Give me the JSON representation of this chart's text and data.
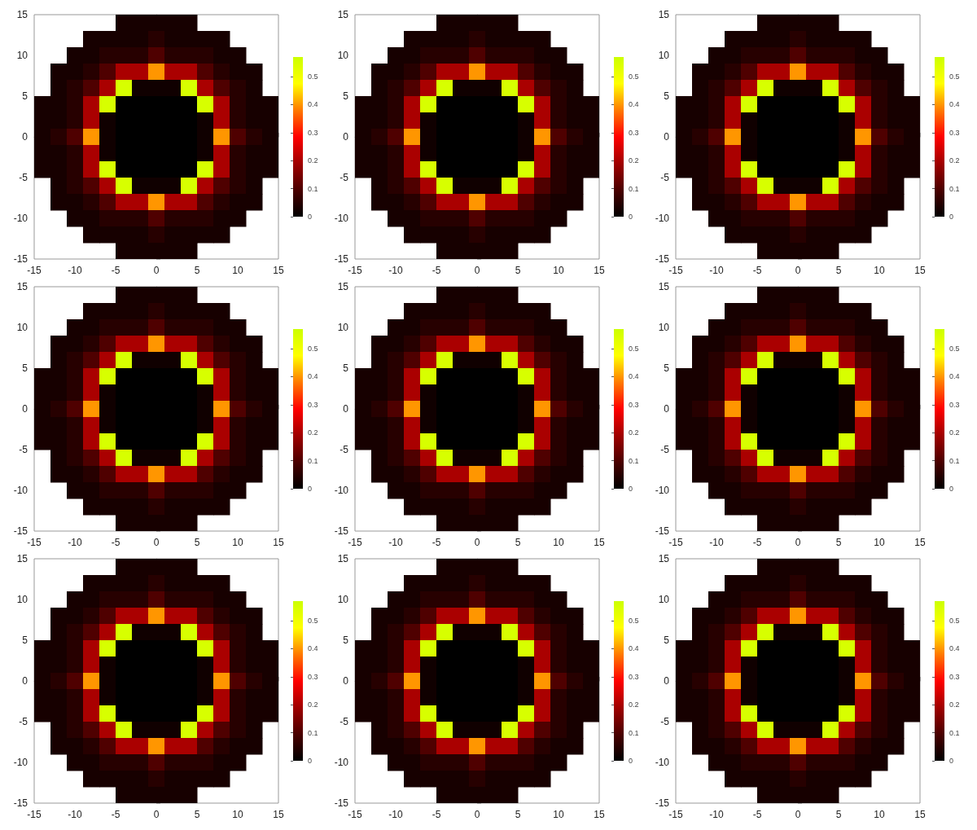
{
  "chart_data": [
    {
      "type": "heatmap",
      "xlim": [
        -15,
        15
      ],
      "ylim": [
        -15,
        15
      ],
      "xticks": [
        -15,
        -10,
        -5,
        0,
        5,
        10,
        15
      ],
      "yticks": [
        -15,
        -10,
        -5,
        0,
        5,
        10,
        15
      ],
      "clim": [
        0,
        0.57
      ],
      "cticks": [
        0,
        0.1,
        0.2,
        0.3,
        0.4,
        0.5
      ],
      "cells": [
        [
          null,
          null,
          null,
          null,
          null,
          0.03,
          0.03,
          0.03,
          0.03,
          0.03,
          null,
          null,
          null,
          null,
          null
        ],
        [
          null,
          null,
          null,
          0.03,
          0.03,
          0.03,
          0.03,
          0.05,
          0.03,
          0.03,
          0.03,
          0.03,
          null,
          null,
          null
        ],
        [
          null,
          null,
          0.03,
          0.03,
          0.05,
          0.05,
          0.05,
          0.1,
          0.05,
          0.05,
          0.05,
          0.03,
          0.03,
          null,
          null
        ],
        [
          null,
          0.03,
          0.03,
          0.05,
          0.1,
          0.2,
          0.2,
          0.4,
          0.2,
          0.2,
          0.1,
          0.05,
          0.03,
          0.03,
          null
        ],
        [
          null,
          0.03,
          0.05,
          0.1,
          0.2,
          0.55,
          0.02,
          0.02,
          0.02,
          0.55,
          0.2,
          0.1,
          0.05,
          0.03,
          null
        ],
        [
          0.03,
          0.03,
          0.05,
          0.2,
          0.55,
          0,
          0,
          0,
          0,
          0,
          0.55,
          0.2,
          0.05,
          0.03,
          0.03
        ],
        [
          0.03,
          0.03,
          0.05,
          0.2,
          0.02,
          0,
          0,
          0,
          0,
          0,
          0.02,
          0.2,
          0.05,
          0.03,
          0.03
        ],
        [
          0.03,
          0.05,
          0.1,
          0.4,
          0.02,
          0,
          0,
          0,
          0,
          0,
          0.02,
          0.4,
          0.1,
          0.05,
          0.03
        ],
        [
          0.03,
          0.03,
          0.05,
          0.2,
          0.02,
          0,
          0,
          0,
          0,
          0,
          0.02,
          0.2,
          0.05,
          0.03,
          0.03
        ],
        [
          0.03,
          0.03,
          0.05,
          0.2,
          0.55,
          0,
          0,
          0,
          0,
          0,
          0.55,
          0.2,
          0.05,
          0.03,
          0.03
        ],
        [
          null,
          0.03,
          0.05,
          0.1,
          0.2,
          0.55,
          0.02,
          0.02,
          0.02,
          0.55,
          0.2,
          0.1,
          0.05,
          0.03,
          null
        ],
        [
          null,
          0.03,
          0.03,
          0.05,
          0.1,
          0.2,
          0.2,
          0.4,
          0.2,
          0.2,
          0.1,
          0.05,
          0.03,
          0.03,
          null
        ],
        [
          null,
          null,
          0.03,
          0.03,
          0.05,
          0.05,
          0.05,
          0.1,
          0.05,
          0.05,
          0.05,
          0.03,
          0.03,
          null,
          null
        ],
        [
          null,
          null,
          null,
          0.03,
          0.03,
          0.03,
          0.03,
          0.05,
          0.03,
          0.03,
          0.03,
          0.03,
          null,
          null,
          null
        ],
        [
          null,
          null,
          null,
          null,
          null,
          0.03,
          0.03,
          0.03,
          0.03,
          0.03,
          null,
          null,
          null,
          null,
          null
        ]
      ]
    },
    {
      "type": "heatmap",
      "xlim": [
        -15,
        15
      ],
      "ylim": [
        -15,
        15
      ],
      "xticks": [
        -15,
        -10,
        -5,
        0,
        5,
        10,
        15
      ],
      "yticks": [
        -15,
        -10,
        -5,
        0,
        5,
        10,
        15
      ],
      "clim": [
        0,
        0.57
      ],
      "cticks": [
        0,
        0.1,
        0.2,
        0.3,
        0.4,
        0.5
      ],
      "cells": [
        [
          null,
          null,
          null,
          null,
          null,
          0.03,
          0.03,
          0.03,
          0.03,
          0.03,
          null,
          null,
          null,
          null,
          null
        ],
        [
          null,
          null,
          null,
          0.03,
          0.03,
          0.03,
          0.03,
          0.05,
          0.03,
          0.03,
          0.03,
          0.03,
          null,
          null,
          null
        ],
        [
          null,
          null,
          0.03,
          0.03,
          0.05,
          0.05,
          0.05,
          0.1,
          0.05,
          0.05,
          0.05,
          0.03,
          0.03,
          null,
          null
        ],
        [
          null,
          0.03,
          0.03,
          0.05,
          0.1,
          0.2,
          0.2,
          0.4,
          0.2,
          0.2,
          0.1,
          0.05,
          0.03,
          0.03,
          null
        ],
        [
          null,
          0.03,
          0.05,
          0.1,
          0.2,
          0.55,
          0.02,
          0.02,
          0.02,
          0.55,
          0.2,
          0.1,
          0.05,
          0.03,
          null
        ],
        [
          0.03,
          0.03,
          0.05,
          0.2,
          0.55,
          0,
          0,
          0,
          0,
          0,
          0.55,
          0.2,
          0.05,
          0.03,
          0.03
        ],
        [
          0.03,
          0.03,
          0.05,
          0.2,
          0.02,
          0,
          0,
          0,
          0,
          0,
          0.02,
          0.2,
          0.05,
          0.03,
          0.03
        ],
        [
          0.03,
          0.05,
          0.1,
          0.4,
          0.02,
          0,
          0,
          0,
          0,
          0,
          0.02,
          0.4,
          0.1,
          0.05,
          0.03
        ],
        [
          0.03,
          0.03,
          0.05,
          0.2,
          0.02,
          0,
          0,
          0,
          0,
          0,
          0.02,
          0.2,
          0.05,
          0.03,
          0.03
        ],
        [
          0.03,
          0.03,
          0.05,
          0.2,
          0.55,
          0,
          0,
          0,
          0,
          0,
          0.55,
          0.2,
          0.05,
          0.03,
          0.03
        ],
        [
          null,
          0.03,
          0.05,
          0.1,
          0.2,
          0.55,
          0.02,
          0.02,
          0.02,
          0.55,
          0.2,
          0.1,
          0.05,
          0.03,
          null
        ],
        [
          null,
          0.03,
          0.03,
          0.05,
          0.1,
          0.2,
          0.2,
          0.4,
          0.2,
          0.2,
          0.1,
          0.05,
          0.03,
          0.03,
          null
        ],
        [
          null,
          null,
          0.03,
          0.03,
          0.05,
          0.05,
          0.05,
          0.1,
          0.05,
          0.05,
          0.05,
          0.03,
          0.03,
          null,
          null
        ],
        [
          null,
          null,
          null,
          0.03,
          0.03,
          0.03,
          0.03,
          0.05,
          0.03,
          0.03,
          0.03,
          0.03,
          null,
          null,
          null
        ],
        [
          null,
          null,
          null,
          null,
          null,
          0.03,
          0.03,
          0.03,
          0.03,
          0.03,
          null,
          null,
          null,
          null,
          null
        ]
      ]
    },
    {
      "type": "heatmap",
      "xlim": [
        -15,
        15
      ],
      "ylim": [
        -15,
        15
      ],
      "xticks": [
        -15,
        -10,
        -5,
        0,
        5,
        10,
        15
      ],
      "yticks": [
        -15,
        -10,
        -5,
        0,
        5,
        10,
        15
      ],
      "clim": [
        0,
        0.57
      ],
      "cticks": [
        0,
        0.1,
        0.2,
        0.3,
        0.4,
        0.5
      ],
      "cells": [
        [
          null,
          null,
          null,
          null,
          null,
          0.03,
          0.03,
          0.03,
          0.03,
          0.03,
          null,
          null,
          null,
          null,
          null
        ],
        [
          null,
          null,
          null,
          0.03,
          0.03,
          0.03,
          0.03,
          0.05,
          0.03,
          0.03,
          0.03,
          0.03,
          null,
          null,
          null
        ],
        [
          null,
          null,
          0.03,
          0.03,
          0.05,
          0.05,
          0.05,
          0.1,
          0.05,
          0.05,
          0.05,
          0.03,
          0.03,
          null,
          null
        ],
        [
          null,
          0.03,
          0.03,
          0.05,
          0.1,
          0.2,
          0.2,
          0.4,
          0.2,
          0.2,
          0.1,
          0.05,
          0.03,
          0.03,
          null
        ],
        [
          null,
          0.03,
          0.05,
          0.1,
          0.2,
          0.55,
          0.02,
          0.02,
          0.02,
          0.55,
          0.2,
          0.1,
          0.05,
          0.03,
          null
        ],
        [
          0.03,
          0.03,
          0.05,
          0.2,
          0.55,
          0,
          0,
          0,
          0,
          0,
          0.55,
          0.2,
          0.05,
          0.03,
          0.03
        ],
        [
          0.03,
          0.03,
          0.05,
          0.2,
          0.02,
          0,
          0,
          0,
          0,
          0,
          0.02,
          0.2,
          0.05,
          0.03,
          0.03
        ],
        [
          0.03,
          0.05,
          0.1,
          0.4,
          0.02,
          0,
          0,
          0,
          0,
          0,
          0.02,
          0.4,
          0.1,
          0.05,
          0.03
        ],
        [
          0.03,
          0.03,
          0.05,
          0.2,
          0.02,
          0,
          0,
          0,
          0,
          0,
          0.02,
          0.2,
          0.05,
          0.03,
          0.03
        ],
        [
          0.03,
          0.03,
          0.05,
          0.2,
          0.55,
          0,
          0,
          0,
          0,
          0,
          0.55,
          0.2,
          0.05,
          0.03,
          0.03
        ],
        [
          null,
          0.03,
          0.05,
          0.1,
          0.2,
          0.55,
          0.02,
          0.02,
          0.02,
          0.55,
          0.2,
          0.1,
          0.05,
          0.03,
          null
        ],
        [
          null,
          0.03,
          0.03,
          0.05,
          0.1,
          0.2,
          0.2,
          0.4,
          0.2,
          0.2,
          0.1,
          0.05,
          0.03,
          0.03,
          null
        ],
        [
          null,
          null,
          0.03,
          0.03,
          0.05,
          0.05,
          0.05,
          0.1,
          0.05,
          0.05,
          0.05,
          0.03,
          0.03,
          null,
          null
        ],
        [
          null,
          null,
          null,
          0.03,
          0.03,
          0.03,
          0.03,
          0.05,
          0.03,
          0.03,
          0.03,
          0.03,
          null,
          null,
          null
        ],
        [
          null,
          null,
          null,
          null,
          null,
          0.03,
          0.03,
          0.03,
          0.03,
          0.03,
          null,
          null,
          null,
          null,
          null
        ]
      ]
    },
    {
      "type": "heatmap",
      "xlim": [
        -15,
        15
      ],
      "ylim": [
        -15,
        15
      ],
      "xticks": [
        -15,
        -10,
        -5,
        0,
        5,
        10,
        15
      ],
      "yticks": [
        -15,
        -10,
        -5,
        0,
        5,
        10,
        15
      ],
      "clim": [
        0,
        0.57
      ],
      "cticks": [
        0,
        0.1,
        0.2,
        0.3,
        0.4,
        0.5
      ],
      "cells": [
        [
          null,
          null,
          null,
          null,
          null,
          0.03,
          0.03,
          0.03,
          0.03,
          0.03,
          null,
          null,
          null,
          null,
          null
        ],
        [
          null,
          null,
          null,
          0.03,
          0.03,
          0.03,
          0.03,
          0.05,
          0.03,
          0.03,
          0.03,
          0.03,
          null,
          null,
          null
        ],
        [
          null,
          null,
          0.03,
          0.03,
          0.05,
          0.05,
          0.05,
          0.1,
          0.05,
          0.05,
          0.05,
          0.03,
          0.03,
          null,
          null
        ],
        [
          null,
          0.03,
          0.03,
          0.05,
          0.1,
          0.2,
          0.2,
          0.4,
          0.2,
          0.2,
          0.1,
          0.05,
          0.03,
          0.03,
          null
        ],
        [
          null,
          0.03,
          0.05,
          0.1,
          0.2,
          0.55,
          0.02,
          0.02,
          0.02,
          0.55,
          0.2,
          0.1,
          0.05,
          0.03,
          null
        ],
        [
          0.03,
          0.03,
          0.05,
          0.2,
          0.55,
          0,
          0,
          0,
          0,
          0,
          0.55,
          0.2,
          0.05,
          0.03,
          0.03
        ],
        [
          0.03,
          0.03,
          0.05,
          0.2,
          0.02,
          0,
          0,
          0,
          0,
          0,
          0.02,
          0.2,
          0.05,
          0.03,
          0.03
        ],
        [
          0.03,
          0.05,
          0.1,
          0.4,
          0.02,
          0,
          0,
          0,
          0,
          0,
          0.02,
          0.4,
          0.1,
          0.05,
          0.03
        ],
        [
          0.03,
          0.03,
          0.05,
          0.2,
          0.02,
          0,
          0,
          0,
          0,
          0,
          0.02,
          0.2,
          0.05,
          0.03,
          0.03
        ],
        [
          0.03,
          0.03,
          0.05,
          0.2,
          0.55,
          0,
          0,
          0,
          0,
          0,
          0.55,
          0.2,
          0.05,
          0.03,
          0.03
        ],
        [
          null,
          0.03,
          0.05,
          0.1,
          0.2,
          0.55,
          0.02,
          0.02,
          0.02,
          0.55,
          0.2,
          0.1,
          0.05,
          0.03,
          null
        ],
        [
          null,
          0.03,
          0.03,
          0.05,
          0.1,
          0.2,
          0.2,
          0.4,
          0.2,
          0.2,
          0.1,
          0.05,
          0.03,
          0.03,
          null
        ],
        [
          null,
          null,
          0.03,
          0.03,
          0.05,
          0.05,
          0.05,
          0.1,
          0.05,
          0.05,
          0.05,
          0.03,
          0.03,
          null,
          null
        ],
        [
          null,
          null,
          null,
          0.03,
          0.03,
          0.03,
          0.03,
          0.05,
          0.03,
          0.03,
          0.03,
          0.03,
          null,
          null,
          null
        ],
        [
          null,
          null,
          null,
          null,
          null,
          0.03,
          0.03,
          0.03,
          0.03,
          0.03,
          null,
          null,
          null,
          null,
          null
        ]
      ]
    },
    {
      "type": "heatmap",
      "xlim": [
        -15,
        15
      ],
      "ylim": [
        -15,
        15
      ],
      "xticks": [
        -15,
        -10,
        -5,
        0,
        5,
        10,
        15
      ],
      "yticks": [
        -15,
        -10,
        -5,
        0,
        5,
        10,
        15
      ],
      "clim": [
        0,
        0.57
      ],
      "cticks": [
        0,
        0.1,
        0.2,
        0.3,
        0.4,
        0.5
      ],
      "cells": [
        [
          null,
          null,
          null,
          null,
          null,
          0.03,
          0.03,
          0.03,
          0.03,
          0.03,
          null,
          null,
          null,
          null,
          null
        ],
        [
          null,
          null,
          null,
          0.03,
          0.03,
          0.03,
          0.03,
          0.05,
          0.03,
          0.03,
          0.03,
          0.03,
          null,
          null,
          null
        ],
        [
          null,
          null,
          0.03,
          0.03,
          0.05,
          0.05,
          0.05,
          0.1,
          0.05,
          0.05,
          0.05,
          0.03,
          0.03,
          null,
          null
        ],
        [
          null,
          0.03,
          0.03,
          0.05,
          0.1,
          0.2,
          0.2,
          0.4,
          0.2,
          0.2,
          0.1,
          0.05,
          0.03,
          0.03,
          null
        ],
        [
          null,
          0.03,
          0.05,
          0.1,
          0.2,
          0.55,
          0.02,
          0.02,
          0.02,
          0.55,
          0.2,
          0.1,
          0.05,
          0.03,
          null
        ],
        [
          0.03,
          0.03,
          0.05,
          0.2,
          0.55,
          0,
          0,
          0,
          0,
          0,
          0.55,
          0.2,
          0.05,
          0.03,
          0.03
        ],
        [
          0.03,
          0.03,
          0.05,
          0.2,
          0.02,
          0,
          0,
          0,
          0,
          0,
          0.02,
          0.2,
          0.05,
          0.03,
          0.03
        ],
        [
          0.03,
          0.05,
          0.1,
          0.4,
          0.02,
          0,
          0,
          0,
          0,
          0,
          0.02,
          0.4,
          0.1,
          0.05,
          0.03
        ],
        [
          0.03,
          0.03,
          0.05,
          0.2,
          0.02,
          0,
          0,
          0,
          0,
          0,
          0.02,
          0.2,
          0.05,
          0.03,
          0.03
        ],
        [
          0.03,
          0.03,
          0.05,
          0.2,
          0.55,
          0,
          0,
          0,
          0,
          0,
          0.55,
          0.2,
          0.05,
          0.03,
          0.03
        ],
        [
          null,
          0.03,
          0.05,
          0.1,
          0.2,
          0.55,
          0.02,
          0.02,
          0.02,
          0.55,
          0.2,
          0.1,
          0.05,
          0.03,
          null
        ],
        [
          null,
          0.03,
          0.03,
          0.05,
          0.1,
          0.2,
          0.2,
          0.4,
          0.2,
          0.2,
          0.1,
          0.05,
          0.03,
          0.03,
          null
        ],
        [
          null,
          null,
          0.03,
          0.03,
          0.05,
          0.05,
          0.05,
          0.1,
          0.05,
          0.05,
          0.05,
          0.03,
          0.03,
          null,
          null
        ],
        [
          null,
          null,
          null,
          0.03,
          0.03,
          0.03,
          0.03,
          0.05,
          0.03,
          0.03,
          0.03,
          0.03,
          null,
          null,
          null
        ],
        [
          null,
          null,
          null,
          null,
          null,
          0.03,
          0.03,
          0.03,
          0.03,
          0.03,
          null,
          null,
          null,
          null,
          null
        ]
      ]
    },
    {
      "type": "heatmap",
      "xlim": [
        -15,
        15
      ],
      "ylim": [
        -15,
        15
      ],
      "xticks": [
        -15,
        -10,
        -5,
        0,
        5,
        10,
        15
      ],
      "yticks": [
        -15,
        -10,
        -5,
        0,
        5,
        10,
        15
      ],
      "clim": [
        0,
        0.57
      ],
      "cticks": [
        0,
        0.1,
        0.2,
        0.3,
        0.4,
        0.5
      ],
      "cells": [
        [
          null,
          null,
          null,
          null,
          null,
          0.03,
          0.03,
          0.03,
          0.03,
          0.03,
          null,
          null,
          null,
          null,
          null
        ],
        [
          null,
          null,
          null,
          0.03,
          0.03,
          0.03,
          0.03,
          0.05,
          0.03,
          0.03,
          0.03,
          0.03,
          null,
          null,
          null
        ],
        [
          null,
          null,
          0.03,
          0.03,
          0.05,
          0.05,
          0.05,
          0.1,
          0.05,
          0.05,
          0.05,
          0.03,
          0.03,
          null,
          null
        ],
        [
          null,
          0.03,
          0.03,
          0.05,
          0.1,
          0.2,
          0.2,
          0.4,
          0.2,
          0.2,
          0.1,
          0.05,
          0.03,
          0.03,
          null
        ],
        [
          null,
          0.03,
          0.05,
          0.1,
          0.2,
          0.55,
          0.02,
          0.02,
          0.02,
          0.55,
          0.2,
          0.1,
          0.05,
          0.03,
          null
        ],
        [
          0.03,
          0.03,
          0.05,
          0.2,
          0.55,
          0,
          0,
          0,
          0,
          0,
          0.55,
          0.2,
          0.05,
          0.03,
          0.03
        ],
        [
          0.03,
          0.03,
          0.05,
          0.2,
          0.02,
          0,
          0,
          0,
          0,
          0,
          0.02,
          0.2,
          0.05,
          0.03,
          0.03
        ],
        [
          0.03,
          0.05,
          0.1,
          0.4,
          0.02,
          0,
          0,
          0,
          0,
          0,
          0.02,
          0.4,
          0.1,
          0.05,
          0.03
        ],
        [
          0.03,
          0.03,
          0.05,
          0.2,
          0.02,
          0,
          0,
          0,
          0,
          0,
          0.02,
          0.2,
          0.05,
          0.03,
          0.03
        ],
        [
          0.03,
          0.03,
          0.05,
          0.2,
          0.55,
          0,
          0,
          0,
          0,
          0,
          0.55,
          0.2,
          0.05,
          0.03,
          0.03
        ],
        [
          null,
          0.03,
          0.05,
          0.1,
          0.2,
          0.55,
          0.02,
          0.02,
          0.02,
          0.55,
          0.2,
          0.1,
          0.05,
          0.03,
          null
        ],
        [
          null,
          0.03,
          0.03,
          0.05,
          0.1,
          0.2,
          0.2,
          0.4,
          0.2,
          0.2,
          0.1,
          0.05,
          0.03,
          0.03,
          null
        ],
        [
          null,
          null,
          0.03,
          0.03,
          0.05,
          0.05,
          0.05,
          0.1,
          0.05,
          0.05,
          0.05,
          0.03,
          0.03,
          null,
          null
        ],
        [
          null,
          null,
          null,
          0.03,
          0.03,
          0.03,
          0.03,
          0.05,
          0.03,
          0.03,
          0.03,
          0.03,
          null,
          null,
          null
        ],
        [
          null,
          null,
          null,
          null,
          null,
          0.03,
          0.03,
          0.03,
          0.03,
          0.03,
          null,
          null,
          null,
          null,
          null
        ]
      ]
    },
    {
      "type": "heatmap",
      "xlim": [
        -15,
        15
      ],
      "ylim": [
        -15,
        15
      ],
      "xticks": [
        -15,
        -10,
        -5,
        0,
        5,
        10,
        15
      ],
      "yticks": [
        -15,
        -10,
        -5,
        0,
        5,
        10,
        15
      ],
      "clim": [
        0,
        0.57
      ],
      "cticks": [
        0,
        0.1,
        0.2,
        0.3,
        0.4,
        0.5
      ],
      "cells": [
        [
          null,
          null,
          null,
          null,
          null,
          0.03,
          0.03,
          0.03,
          0.03,
          0.03,
          null,
          null,
          null,
          null,
          null
        ],
        [
          null,
          null,
          null,
          0.03,
          0.03,
          0.03,
          0.03,
          0.05,
          0.03,
          0.03,
          0.03,
          0.03,
          null,
          null,
          null
        ],
        [
          null,
          null,
          0.03,
          0.03,
          0.05,
          0.05,
          0.05,
          0.1,
          0.05,
          0.05,
          0.05,
          0.03,
          0.03,
          null,
          null
        ],
        [
          null,
          0.03,
          0.03,
          0.05,
          0.1,
          0.2,
          0.2,
          0.4,
          0.2,
          0.2,
          0.1,
          0.05,
          0.03,
          0.03,
          null
        ],
        [
          null,
          0.03,
          0.05,
          0.1,
          0.2,
          0.55,
          0.02,
          0.02,
          0.02,
          0.55,
          0.2,
          0.1,
          0.05,
          0.03,
          null
        ],
        [
          0.03,
          0.03,
          0.05,
          0.2,
          0.55,
          0,
          0,
          0,
          0,
          0,
          0.55,
          0.2,
          0.05,
          0.03,
          0.03
        ],
        [
          0.03,
          0.03,
          0.05,
          0.2,
          0.02,
          0,
          0,
          0,
          0,
          0,
          0.02,
          0.2,
          0.05,
          0.03,
          0.03
        ],
        [
          0.03,
          0.05,
          0.1,
          0.4,
          0.02,
          0,
          0,
          0,
          0,
          0,
          0.02,
          0.4,
          0.1,
          0.05,
          0.03
        ],
        [
          0.03,
          0.03,
          0.05,
          0.2,
          0.02,
          0,
          0,
          0,
          0,
          0,
          0.02,
          0.2,
          0.05,
          0.03,
          0.03
        ],
        [
          0.03,
          0.03,
          0.05,
          0.2,
          0.55,
          0,
          0,
          0,
          0,
          0,
          0.55,
          0.2,
          0.05,
          0.03,
          0.03
        ],
        [
          null,
          0.03,
          0.05,
          0.1,
          0.2,
          0.55,
          0.02,
          0.02,
          0.02,
          0.55,
          0.2,
          0.1,
          0.05,
          0.03,
          null
        ],
        [
          null,
          0.03,
          0.03,
          0.05,
          0.1,
          0.2,
          0.2,
          0.4,
          0.2,
          0.2,
          0.1,
          0.05,
          0.03,
          0.03,
          null
        ],
        [
          null,
          null,
          0.03,
          0.03,
          0.05,
          0.05,
          0.05,
          0.1,
          0.05,
          0.05,
          0.05,
          0.03,
          0.03,
          null,
          null
        ],
        [
          null,
          null,
          null,
          0.03,
          0.03,
          0.03,
          0.03,
          0.05,
          0.03,
          0.03,
          0.03,
          0.03,
          null,
          null,
          null
        ],
        [
          null,
          null,
          null,
          null,
          null,
          0.03,
          0.03,
          0.03,
          0.03,
          0.03,
          null,
          null,
          null,
          null,
          null
        ]
      ]
    },
    {
      "type": "heatmap",
      "xlim": [
        -15,
        15
      ],
      "ylim": [
        -15,
        15
      ],
      "xticks": [
        -15,
        -10,
        -5,
        0,
        5,
        10,
        15
      ],
      "yticks": [
        -15,
        -10,
        -5,
        0,
        5,
        10,
        15
      ],
      "clim": [
        0,
        0.57
      ],
      "cticks": [
        0,
        0.1,
        0.2,
        0.3,
        0.4,
        0.5
      ],
      "cells": [
        [
          null,
          null,
          null,
          null,
          null,
          0.03,
          0.03,
          0.03,
          0.03,
          0.03,
          null,
          null,
          null,
          null,
          null
        ],
        [
          null,
          null,
          null,
          0.03,
          0.03,
          0.03,
          0.03,
          0.05,
          0.03,
          0.03,
          0.03,
          0.03,
          null,
          null,
          null
        ],
        [
          null,
          null,
          0.03,
          0.03,
          0.05,
          0.05,
          0.05,
          0.1,
          0.05,
          0.05,
          0.05,
          0.03,
          0.03,
          null,
          null
        ],
        [
          null,
          0.03,
          0.03,
          0.05,
          0.1,
          0.2,
          0.2,
          0.4,
          0.2,
          0.2,
          0.1,
          0.05,
          0.03,
          0.03,
          null
        ],
        [
          null,
          0.03,
          0.05,
          0.1,
          0.2,
          0.55,
          0.02,
          0.02,
          0.02,
          0.55,
          0.2,
          0.1,
          0.05,
          0.03,
          null
        ],
        [
          0.03,
          0.03,
          0.05,
          0.2,
          0.55,
          0,
          0,
          0,
          0,
          0,
          0.55,
          0.2,
          0.05,
          0.03,
          0.03
        ],
        [
          0.03,
          0.03,
          0.05,
          0.2,
          0.02,
          0,
          0,
          0,
          0,
          0,
          0.02,
          0.2,
          0.05,
          0.03,
          0.03
        ],
        [
          0.03,
          0.05,
          0.1,
          0.4,
          0.02,
          0,
          0,
          0,
          0,
          0,
          0.02,
          0.4,
          0.1,
          0.05,
          0.03
        ],
        [
          0.03,
          0.03,
          0.05,
          0.2,
          0.02,
          0,
          0,
          0,
          0,
          0,
          0.02,
          0.2,
          0.05,
          0.03,
          0.03
        ],
        [
          0.03,
          0.03,
          0.05,
          0.2,
          0.55,
          0,
          0,
          0,
          0,
          0,
          0.55,
          0.2,
          0.05,
          0.03,
          0.03
        ],
        [
          null,
          0.03,
          0.05,
          0.1,
          0.2,
          0.55,
          0.02,
          0.02,
          0.02,
          0.55,
          0.2,
          0.1,
          0.05,
          0.03,
          null
        ],
        [
          null,
          0.03,
          0.03,
          0.05,
          0.1,
          0.2,
          0.2,
          0.4,
          0.2,
          0.2,
          0.1,
          0.05,
          0.03,
          0.03,
          null
        ],
        [
          null,
          null,
          0.03,
          0.03,
          0.05,
          0.05,
          0.05,
          0.1,
          0.05,
          0.05,
          0.05,
          0.03,
          0.03,
          null,
          null
        ],
        [
          null,
          null,
          null,
          0.03,
          0.03,
          0.03,
          0.03,
          0.05,
          0.03,
          0.03,
          0.03,
          0.03,
          null,
          null,
          null
        ],
        [
          null,
          null,
          null,
          null,
          null,
          0.03,
          0.03,
          0.03,
          0.03,
          0.03,
          null,
          null,
          null,
          null,
          null
        ]
      ]
    },
    {
      "type": "heatmap",
      "xlim": [
        -15,
        15
      ],
      "ylim": [
        -15,
        15
      ],
      "xticks": [
        -15,
        -10,
        -5,
        0,
        5,
        10,
        15
      ],
      "yticks": [
        -15,
        -10,
        -5,
        0,
        5,
        10,
        15
      ],
      "clim": [
        0,
        0.57
      ],
      "cticks": [
        0,
        0.1,
        0.2,
        0.3,
        0.4,
        0.5
      ],
      "cells": [
        [
          null,
          null,
          null,
          null,
          null,
          0.03,
          0.03,
          0.03,
          0.03,
          0.03,
          null,
          null,
          null,
          null,
          null
        ],
        [
          null,
          null,
          null,
          0.03,
          0.03,
          0.03,
          0.03,
          0.05,
          0.03,
          0.03,
          0.03,
          0.03,
          null,
          null,
          null
        ],
        [
          null,
          null,
          0.03,
          0.03,
          0.05,
          0.05,
          0.05,
          0.1,
          0.05,
          0.05,
          0.05,
          0.03,
          0.03,
          null,
          null
        ],
        [
          null,
          0.03,
          0.03,
          0.05,
          0.1,
          0.2,
          0.2,
          0.4,
          0.2,
          0.2,
          0.1,
          0.05,
          0.03,
          0.03,
          null
        ],
        [
          null,
          0.03,
          0.05,
          0.1,
          0.2,
          0.55,
          0.02,
          0.02,
          0.02,
          0.55,
          0.2,
          0.1,
          0.05,
          0.03,
          null
        ],
        [
          0.03,
          0.03,
          0.05,
          0.2,
          0.55,
          0,
          0,
          0,
          0,
          0,
          0.55,
          0.2,
          0.05,
          0.03,
          0.03
        ],
        [
          0.03,
          0.03,
          0.05,
          0.2,
          0.02,
          0,
          0,
          0,
          0,
          0,
          0.02,
          0.2,
          0.05,
          0.03,
          0.03
        ],
        [
          0.03,
          0.05,
          0.1,
          0.4,
          0.02,
          0,
          0,
          0,
          0,
          0,
          0.02,
          0.4,
          0.1,
          0.05,
          0.03
        ],
        [
          0.03,
          0.03,
          0.05,
          0.2,
          0.02,
          0,
          0,
          0,
          0,
          0,
          0.02,
          0.2,
          0.05,
          0.03,
          0.03
        ],
        [
          0.03,
          0.03,
          0.05,
          0.2,
          0.55,
          0,
          0,
          0,
          0,
          0,
          0.55,
          0.2,
          0.05,
          0.03,
          0.03
        ],
        [
          null,
          0.03,
          0.05,
          0.1,
          0.2,
          0.55,
          0.02,
          0.02,
          0.02,
          0.55,
          0.2,
          0.1,
          0.05,
          0.03,
          null
        ],
        [
          null,
          0.03,
          0.03,
          0.05,
          0.1,
          0.2,
          0.2,
          0.4,
          0.2,
          0.2,
          0.1,
          0.05,
          0.03,
          0.03,
          null
        ],
        [
          null,
          null,
          0.03,
          0.03,
          0.05,
          0.05,
          0.05,
          0.1,
          0.05,
          0.05,
          0.05,
          0.03,
          0.03,
          null,
          null
        ],
        [
          null,
          null,
          null,
          0.03,
          0.03,
          0.03,
          0.03,
          0.05,
          0.03,
          0.03,
          0.03,
          0.03,
          null,
          null,
          null
        ],
        [
          null,
          null,
          null,
          null,
          null,
          0.03,
          0.03,
          0.03,
          0.03,
          0.03,
          null,
          null,
          null,
          null,
          null
        ]
      ]
    }
  ]
}
